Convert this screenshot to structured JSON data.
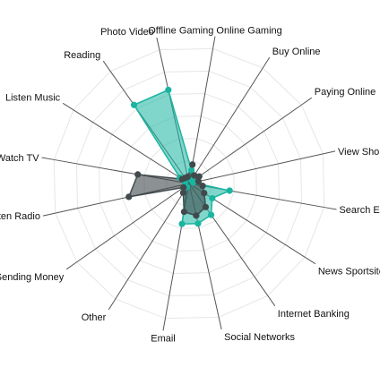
{
  "chart_data": {
    "type": "radar",
    "title": "",
    "categories": [
      "Offline Gaming Online Gaming",
      "Buy Online",
      "Paying Online",
      "View Shopping sites",
      "Search Engine",
      "News Sportsites",
      "Internet Banking",
      "Social Networks",
      "Email",
      "Other",
      "Sending Money",
      "Listen Radio",
      "Watch TV",
      "Listen Music",
      "Reading",
      "Photo Video"
    ],
    "rlim": [
      0,
      100
    ],
    "grid": true,
    "legend": "none",
    "series": [
      {
        "color": "#1ab5a0",
        "values": [
          10,
          3,
          3,
          3,
          30,
          20,
          28,
          30,
          30,
          3,
          5,
          3,
          3,
          8,
          70,
          70
        ]
      },
      {
        "color": "#404a4c",
        "values": [
          14,
          7,
          9,
          7,
          10,
          13,
          21,
          24,
          21,
          8,
          5,
          45,
          38,
          6,
          5,
          5
        ]
      }
    ]
  }
}
